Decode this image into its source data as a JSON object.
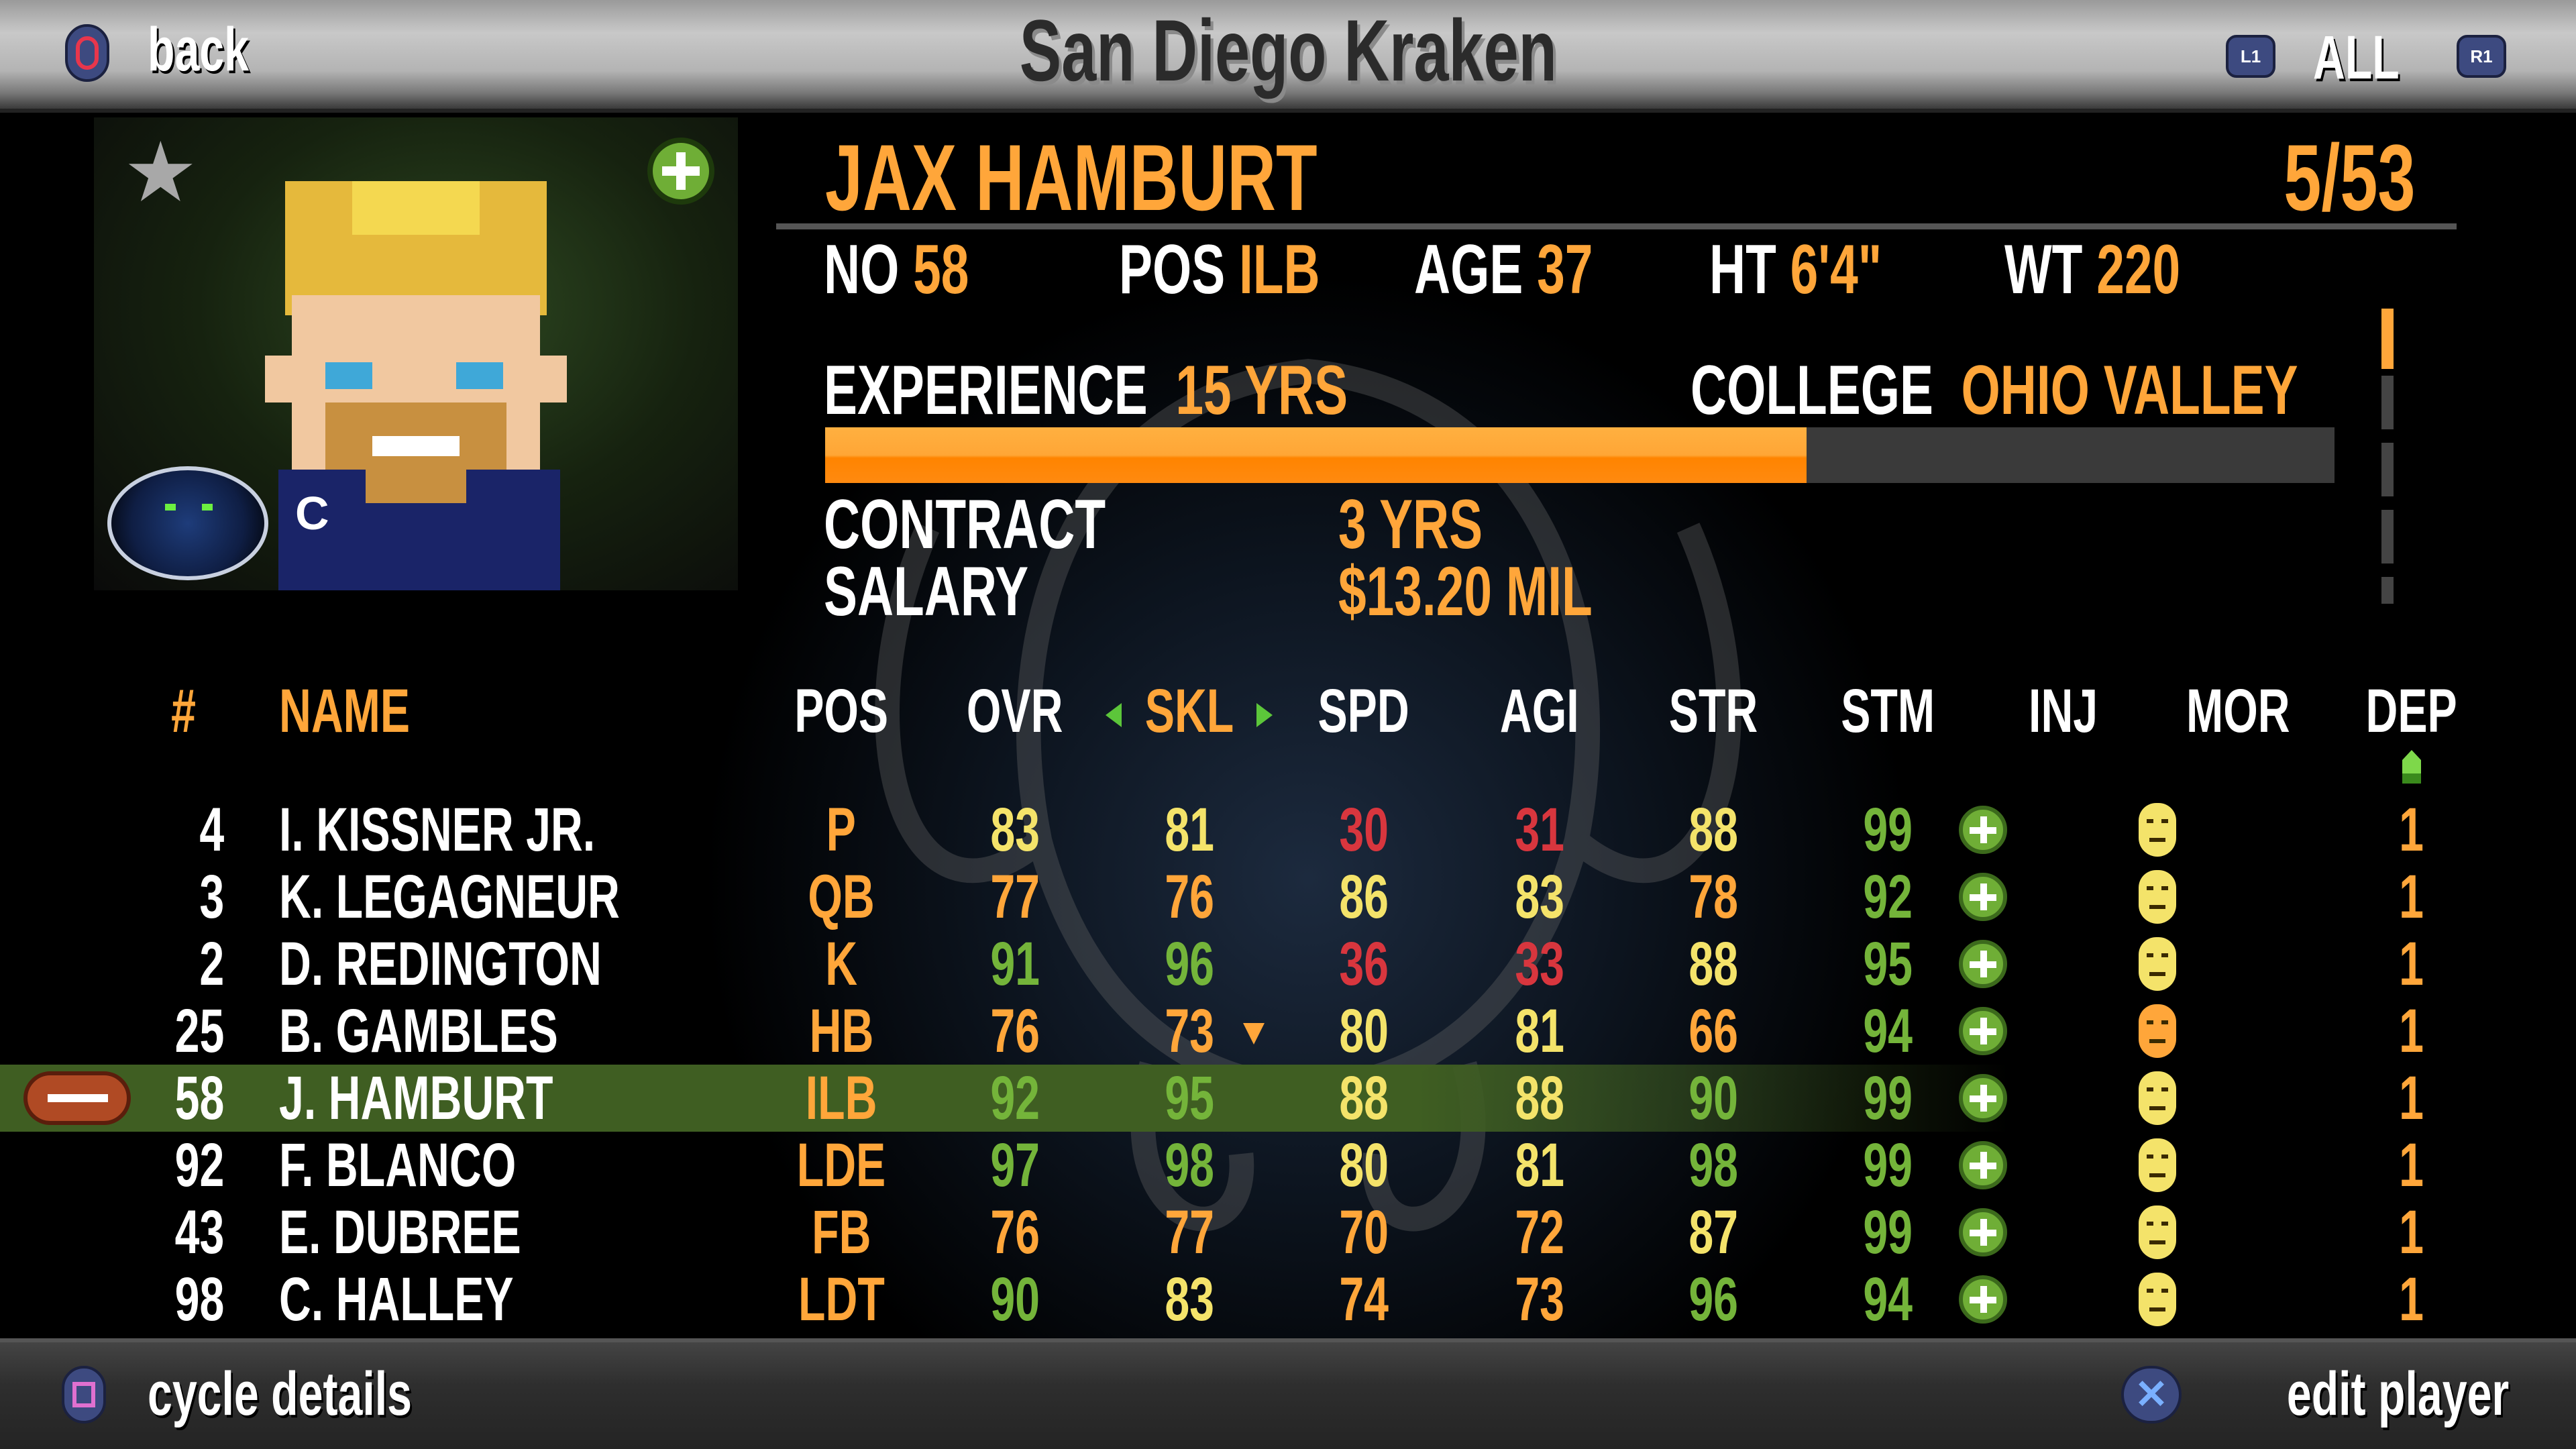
{
  "header": {
    "title": "San Diego Kraken",
    "back_label": "back",
    "filter_label": "ALL",
    "l1_label": "L1",
    "r1_label": "R1"
  },
  "footer": {
    "cycle_label": "cycle details",
    "edit_label": "edit player"
  },
  "player": {
    "name": "JAX HAMBURT",
    "roster_index": "5/53",
    "no_label": "NO",
    "no": "58",
    "pos_label": "POS",
    "pos": "ILB",
    "age_label": "AGE",
    "age": "37",
    "ht_label": "HT",
    "ht": "6'4\"",
    "wt_label": "WT",
    "wt": "220",
    "experience_label": "EXPERIENCE",
    "experience": "15 YRS",
    "experience_fill": 0.65,
    "college_label": "COLLEGE",
    "college": "OHIO VALLEY",
    "contract_label": "CONTRACT",
    "contract": "3 YRS",
    "salary_label": "SALARY",
    "salary": "$13.20 MIL",
    "captain_badge": "C",
    "favorite_icon": "star-icon",
    "add_icon": "plus-circle-icon"
  },
  "colors": {
    "accent": "#ffa63a",
    "red": "#d8363e",
    "orange": "#ffa63a",
    "yellow": "#f4e36a",
    "green": "#74b43a",
    "highlight": "#3f5e22"
  },
  "table": {
    "headers": [
      "#",
      "NAME",
      "POS",
      "OVR",
      "SKL",
      "SPD",
      "AGI",
      "STR",
      "STM",
      "INJ",
      "MOR",
      "DEP"
    ],
    "sort_column": "SKL",
    "selected_row": 4,
    "rows": [
      {
        "num": "4",
        "name": "I. KISSNER JR.",
        "pos": "P",
        "ovr": 83,
        "skl": 81,
        "spd": 30,
        "agi": 31,
        "str": 88,
        "stm": 99,
        "inj": "healthy",
        "mor": "neutral",
        "dep": "1"
      },
      {
        "num": "3",
        "name": "K. LEGAGNEUR",
        "pos": "QB",
        "ovr": 77,
        "skl": 76,
        "spd": 86,
        "agi": 83,
        "str": 78,
        "stm": 92,
        "inj": "healthy",
        "mor": "happy",
        "dep": "1"
      },
      {
        "num": "2",
        "name": "D. REDINGTON",
        "pos": "K",
        "ovr": 91,
        "skl": 96,
        "spd": 36,
        "agi": 33,
        "str": 88,
        "stm": 95,
        "inj": "healthy",
        "mor": "happy",
        "dep": "1"
      },
      {
        "num": "25",
        "name": "B. GAMBLES",
        "pos": "HB",
        "ovr": 76,
        "skl": 73,
        "spd": 80,
        "agi": 81,
        "str": 66,
        "stm": 94,
        "inj": "healthy",
        "mor": "upset",
        "dep": "1",
        "trend": "down"
      },
      {
        "num": "58",
        "name": "J. HAMBURT",
        "pos": "ILB",
        "ovr": 92,
        "skl": 95,
        "spd": 88,
        "agi": 88,
        "str": 90,
        "stm": 99,
        "inj": "healthy",
        "mor": "neutral",
        "dep": "1"
      },
      {
        "num": "92",
        "name": "F. BLANCO",
        "pos": "LDE",
        "ovr": 97,
        "skl": 98,
        "spd": 80,
        "agi": 81,
        "str": 98,
        "stm": 99,
        "inj": "healthy",
        "mor": "neutral",
        "dep": "1"
      },
      {
        "num": "43",
        "name": "E. DUBREE",
        "pos": "FB",
        "ovr": 76,
        "skl": 77,
        "spd": 70,
        "agi": 72,
        "str": 87,
        "stm": 99,
        "inj": "healthy",
        "mor": "neutral",
        "dep": "1"
      },
      {
        "num": "98",
        "name": "C. HALLEY",
        "pos": "LDT",
        "ovr": 90,
        "skl": 83,
        "spd": 74,
        "agi": 73,
        "str": 96,
        "stm": 94,
        "inj": "healthy",
        "mor": "happy",
        "dep": "1"
      }
    ]
  }
}
